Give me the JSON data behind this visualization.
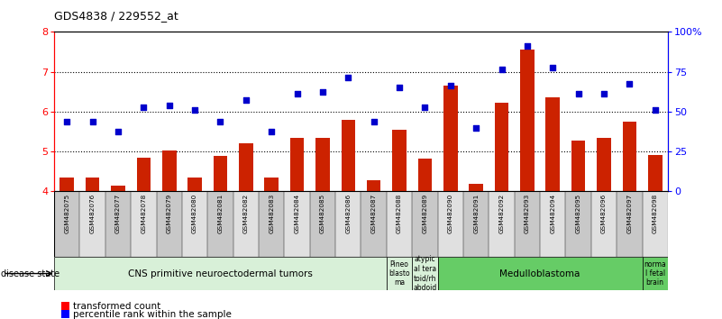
{
  "title": "GDS4838 / 229552_at",
  "samples": [
    "GSM482075",
    "GSM482076",
    "GSM482077",
    "GSM482078",
    "GSM482079",
    "GSM482080",
    "GSM482081",
    "GSM482082",
    "GSM482083",
    "GSM482084",
    "GSM482085",
    "GSM482086",
    "GSM482087",
    "GSM482088",
    "GSM482089",
    "GSM482090",
    "GSM482091",
    "GSM482092",
    "GSM482093",
    "GSM482094",
    "GSM482095",
    "GSM482096",
    "GSM482097",
    "GSM482098"
  ],
  "bar_values": [
    4.35,
    4.35,
    4.15,
    4.85,
    5.02,
    4.35,
    4.9,
    5.2,
    4.35,
    5.35,
    5.35,
    5.8,
    4.28,
    5.55,
    4.82,
    6.65,
    4.18,
    6.22,
    7.55,
    6.35,
    5.28,
    5.35,
    5.75,
    4.92
  ],
  "dot_values": [
    5.75,
    5.75,
    5.5,
    6.1,
    6.15,
    6.05,
    5.75,
    6.3,
    5.5,
    6.45,
    6.5,
    6.85,
    5.75,
    6.6,
    6.1,
    6.65,
    5.6,
    7.05,
    7.65,
    7.1,
    6.45,
    6.45,
    6.7,
    6.05
  ],
  "bar_color": "#cc2200",
  "dot_color": "#0000cc",
  "ylim": [
    4.0,
    8.0
  ],
  "yticks_left": [
    4,
    5,
    6,
    7,
    8
  ],
  "yticks_right": [
    0,
    25,
    50,
    75,
    100
  ],
  "ytick_labels_right": [
    "0",
    "25",
    "50",
    "75",
    "100%"
  ],
  "disease_groups": [
    {
      "label": "CNS primitive neuroectodermal tumors",
      "start": 0,
      "end": 12,
      "color": "#d8f0d8"
    },
    {
      "label": "Pineo\nblasto\nma",
      "start": 13,
      "end": 13,
      "color": "#d8f0d8"
    },
    {
      "label": "atypic\nal tera\ntoid/rh\nabdoid",
      "start": 14,
      "end": 14,
      "color": "#d8f0d8"
    },
    {
      "label": "Medulloblastoma",
      "start": 15,
      "end": 22,
      "color": "#66cc66"
    },
    {
      "label": "norma\nl fetal\nbrain",
      "start": 23,
      "end": 23,
      "color": "#66cc66"
    }
  ],
  "legend_bar_label": "transformed count",
  "legend_dot_label": "percentile rank within the sample",
  "disease_state_label": "disease state"
}
